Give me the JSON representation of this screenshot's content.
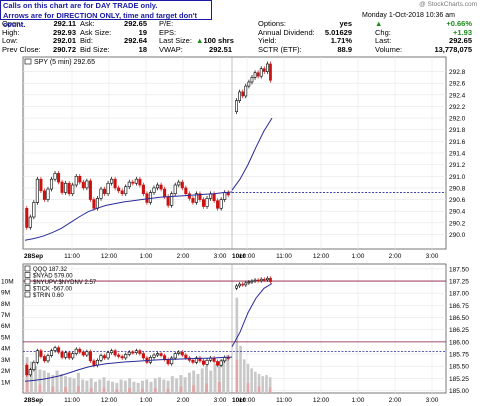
{
  "notice": {
    "line1": "Calls on this chart are for DAY TRADE only.",
    "line2": "Arrows are for DIRECTION ONLY, time and target don't count."
  },
  "brand": "@ StockCharts.com",
  "header": {
    "date": "Monday  1-Oct-2018  10:36 am"
  },
  "quote": {
    "col1": [
      {
        "label": "Open:",
        "value": "292.11"
      },
      {
        "label": "High:",
        "value": "292.93"
      },
      {
        "label": "Low:",
        "value": "292.01"
      },
      {
        "label": "Prev Close:",
        "value": "290.72"
      }
    ],
    "col2": [
      {
        "label": "Ask:",
        "value": "292.65"
      },
      {
        "label": "Ask Size:",
        "value": "19"
      },
      {
        "label": "Bid:",
        "value": "292.64"
      },
      {
        "label": "Bid Size:",
        "value": "18"
      }
    ],
    "col3": [
      {
        "label": "P/E:",
        "value": ""
      },
      {
        "label": "EPS:",
        "value": ""
      },
      {
        "label": "Last Size:",
        "value": "100 shrs"
      },
      {
        "label": "VWAP:",
        "value": "292.51"
      }
    ],
    "col4": [
      {
        "label": "Options:",
        "value": "yes"
      },
      {
        "label": "Annual Dividend:",
        "value": "5.01629"
      },
      {
        "label": "Yield:",
        "value": "1.71%"
      },
      {
        "label": "SCTR (ETF):",
        "value": "88.9"
      }
    ],
    "col5": [
      {
        "label": "Chg:",
        "value": "+0.66%"
      },
      {
        "label": "",
        "value": "+1.93"
      },
      {
        "label": "Last:",
        "value": "292.65"
      },
      {
        "label": "Volume:",
        "value": "13,778,075"
      }
    ],
    "up_color": "#1a8a1a"
  },
  "chart_data": [
    {
      "type": "candlestick",
      "legend": "SPY (5 min) 292.65",
      "ylim": [
        289.75,
        293.05
      ],
      "y_ticks": [
        "290.0",
        "290.2",
        "290.4",
        "290.6",
        "290.8",
        "291.0",
        "291.2",
        "291.4",
        "291.6",
        "291.8",
        "292.0",
        "292.2",
        "292.4",
        "292.6",
        "292.8"
      ],
      "x_ticks": [
        "28Sep",
        "11:00",
        "12:00",
        "1:00",
        "2:00",
        "3:00",
        "10ct",
        "10:00",
        "11:00",
        "12:00",
        "1:00",
        "2:00",
        "3:00"
      ],
      "reference_line": 290.72,
      "up_color": "#000000",
      "down_color": "#cc1111",
      "ma_color": "#2a2a9a",
      "candles_sep28": [
        [
          290.45,
          290.12
        ],
        [
          290.12,
          290.3
        ],
        [
          290.3,
          290.55
        ],
        [
          290.55,
          290.95
        ],
        [
          290.95,
          290.75
        ],
        [
          290.75,
          290.6
        ],
        [
          290.6,
          290.78
        ],
        [
          290.78,
          290.95
        ],
        [
          290.95,
          291.05
        ],
        [
          291.05,
          290.9
        ],
        [
          290.9,
          290.72
        ],
        [
          290.72,
          290.88
        ],
        [
          290.88,
          290.7
        ],
        [
          290.7,
          290.85
        ],
        [
          290.85,
          291.0
        ],
        [
          291.0,
          290.9
        ],
        [
          290.9,
          290.8
        ],
        [
          290.8,
          290.92
        ],
        [
          290.92,
          290.6
        ],
        [
          290.6,
          290.45
        ],
        [
          290.45,
          290.62
        ],
        [
          290.62,
          290.78
        ],
        [
          290.78,
          290.7
        ],
        [
          290.7,
          290.88
        ],
        [
          290.88,
          290.95
        ],
        [
          290.95,
          290.8
        ],
        [
          290.8,
          290.75
        ],
        [
          290.75,
          290.7
        ],
        [
          290.7,
          290.82
        ],
        [
          290.82,
          290.9
        ],
        [
          290.9,
          290.88
        ],
        [
          290.88,
          290.95
        ],
        [
          290.95,
          290.85
        ],
        [
          290.85,
          290.7
        ],
        [
          290.7,
          290.55
        ],
        [
          290.55,
          290.72
        ],
        [
          290.72,
          290.8
        ],
        [
          290.8,
          290.85
        ],
        [
          290.85,
          290.78
        ],
        [
          290.78,
          290.65
        ],
        [
          290.65,
          290.5
        ],
        [
          290.5,
          290.7
        ],
        [
          290.7,
          290.85
        ],
        [
          290.85,
          290.9
        ],
        [
          290.9,
          290.8
        ],
        [
          290.8,
          290.7
        ],
        [
          290.7,
          290.62
        ],
        [
          290.62,
          290.55
        ],
        [
          290.55,
          290.7
        ],
        [
          290.7,
          290.6
        ],
        [
          290.6,
          290.48
        ],
        [
          290.48,
          290.62
        ],
        [
          290.62,
          290.7
        ],
        [
          290.7,
          290.58
        ],
        [
          290.58,
          290.45
        ],
        [
          290.45,
          290.6
        ],
        [
          290.6,
          290.72
        ],
        [
          290.72,
          290.68
        ]
      ],
      "candles_oct1": [
        [
          292.11,
          292.3
        ],
        [
          292.3,
          292.45
        ],
        [
          292.45,
          292.38
        ],
        [
          292.38,
          292.55
        ],
        [
          292.55,
          292.62
        ],
        [
          292.62,
          292.7
        ],
        [
          292.7,
          292.78
        ],
        [
          292.78,
          292.72
        ],
        [
          292.72,
          292.85
        ],
        [
          292.85,
          292.8
        ],
        [
          292.8,
          292.93
        ],
        [
          292.93,
          292.65
        ]
      ],
      "ma_sep28": [
        289.9,
        289.93,
        289.97,
        290.03,
        290.1,
        290.2,
        290.3,
        290.39,
        290.45,
        290.5,
        290.53,
        290.56,
        290.58,
        290.6,
        290.62,
        290.64,
        290.65,
        290.66,
        290.67,
        290.68,
        290.69,
        290.7,
        290.72,
        290.73
      ],
      "ma_oct1": [
        290.76,
        290.95,
        291.2,
        291.5,
        291.78,
        292.0
      ]
    },
    {
      "type": "ratio_lines",
      "legends": [
        "QQQ 187.32",
        "$NYAD 579.00",
        "$NYUPV:$NYDNV 2.57",
        "$TICK -567.00",
        "$TRIN 0.60"
      ],
      "right_ticks": [
        "185.00",
        "185.25",
        "185.50",
        "185.75",
        "186.00",
        "186.25",
        "186.50",
        "186.75",
        "187.00",
        "187.25",
        "187.50"
      ],
      "left_ticks": [
        "1M",
        "2M",
        "3M",
        "4M",
        "5M",
        "6M",
        "7M",
        "8M",
        "9M",
        "10M"
      ],
      "x_ticks": [
        "28Sep",
        "11:00",
        "12:00",
        "1:00",
        "2:00",
        "3:00",
        "10ct",
        "10:00",
        "11:00",
        "12:00",
        "1:00",
        "2:00",
        "3:00"
      ],
      "ylim": [
        184.95,
        187.6
      ],
      "h_lines": [
        186.0,
        185.8,
        187.25
      ],
      "volume_sep28_M": [
        3.2,
        2.8,
        2.4,
        2.1,
        2.0,
        1.8,
        1.6,
        2.0,
        1.7,
        1.5,
        1.4,
        1.3,
        1.8,
        1.2,
        1.1,
        1.3,
        1.0,
        1.2,
        1.4,
        1.1,
        1.0,
        0.9,
        1.2,
        1.1,
        1.3,
        1.0,
        0.9,
        1.1,
        1.2,
        1.0,
        1.3,
        1.4,
        1.2,
        1.1,
        1.5,
        1.3,
        1.6,
        1.4,
        1.8,
        2.0,
        1.7,
        2.2,
        2.4,
        2.0,
        2.6,
        2.8,
        3.0,
        3.4
      ],
      "volume_oct1_M": [
        8.5,
        4.2,
        3.0,
        2.6,
        2.2,
        1.9,
        1.7,
        1.5,
        1.6,
        1.4
      ]
    }
  ]
}
